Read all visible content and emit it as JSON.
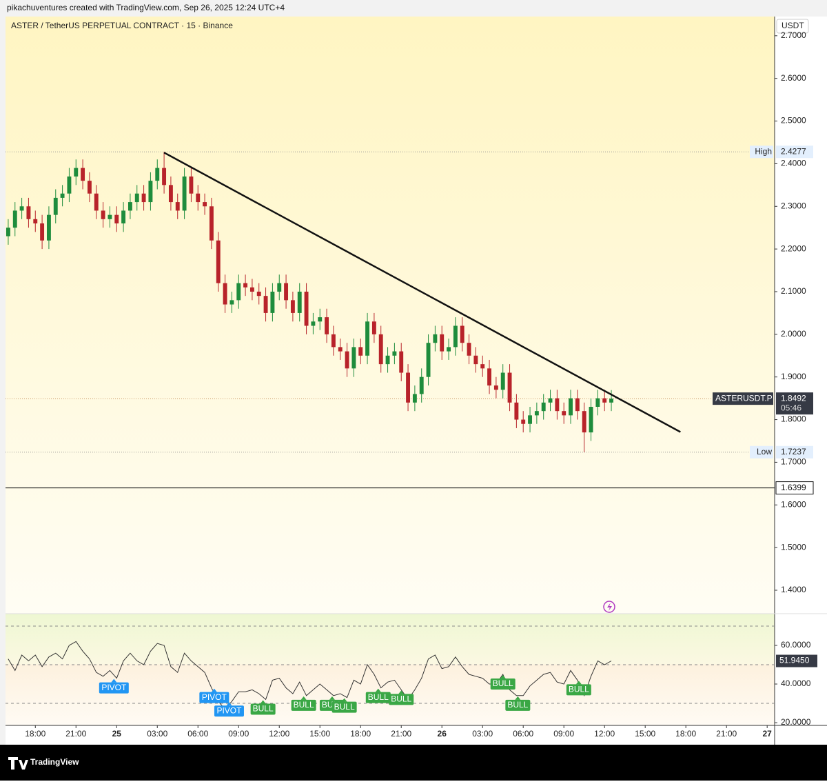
{
  "chart_data": {
    "type": "candlestick",
    "header": "pikachuventures created with TradingView.com, Sep 26, 2025 12:24 UTC+4",
    "title": "ASTER / TetherUS PERPETUAL CONTRACT · 15 · Binance",
    "currency": "USDT",
    "brand": "TradingView",
    "up_color": "#1e8c3c",
    "down_color": "#b8232a",
    "x": [
      16,
      16.5,
      17,
      17.5,
      18,
      18.5,
      19,
      19.5,
      20,
      20.5,
      21,
      21.5,
      22,
      22.5,
      23,
      23.5,
      24,
      24.5,
      25,
      25.5,
      26,
      26.5,
      27,
      27.5,
      28,
      28.5,
      29,
      29.5,
      30,
      30.5,
      31,
      31.5,
      32,
      32.5,
      33,
      33.5,
      34,
      34.5,
      35,
      35.5,
      36,
      36.5,
      37,
      37.5,
      38,
      38.5,
      39,
      39.5,
      40,
      40.5,
      41,
      41.5,
      42,
      42.5,
      43,
      43.5,
      44,
      44.5,
      45,
      45.5,
      46,
      46.5,
      47,
      47.5,
      48,
      48.5,
      49,
      49.5,
      50,
      50.5,
      51,
      51.5,
      52,
      52.5,
      53,
      53.5,
      54,
      54.5,
      55,
      55.5,
      56,
      56.5,
      57,
      57.5,
      58,
      58.5,
      59,
      59.5,
      60,
      60.5
    ],
    "ohlc": {
      "open": [
        2.23,
        2.25,
        2.29,
        2.3,
        2.27,
        2.26,
        2.22,
        2.28,
        2.32,
        2.33,
        2.37,
        2.39,
        2.36,
        2.33,
        2.29,
        2.27,
        2.28,
        2.26,
        2.29,
        2.31,
        2.33,
        2.31,
        2.36,
        2.39,
        2.35,
        2.31,
        2.29,
        2.37,
        2.33,
        2.31,
        2.3,
        2.22,
        2.12,
        2.07,
        2.08,
        2.12,
        2.11,
        2.1,
        2.09,
        2.05,
        2.1,
        2.12,
        2.08,
        2.05,
        2.1,
        2.02,
        2.03,
        2.04,
        2.0,
        1.97,
        1.96,
        1.92,
        1.97,
        1.95,
        2.03,
        2.0,
        1.93,
        1.95,
        1.96,
        1.91,
        1.84,
        1.86,
        1.9,
        1.98,
        2.0,
        1.96,
        1.97,
        2.02,
        1.98,
        1.95,
        1.93,
        1.92,
        1.88,
        1.87,
        1.91,
        1.84,
        1.8,
        1.79,
        1.81,
        1.82,
        1.84,
        1.85,
        1.82,
        1.81,
        1.85,
        1.82,
        1.77,
        1.83,
        1.85,
        1.84
      ],
      "high": [
        2.27,
        2.31,
        2.32,
        2.32,
        2.29,
        2.28,
        2.3,
        2.34,
        2.35,
        2.39,
        2.41,
        2.41,
        2.38,
        2.35,
        2.31,
        2.3,
        2.3,
        2.31,
        2.33,
        2.35,
        2.35,
        2.38,
        2.41,
        2.4277,
        2.37,
        2.33,
        2.39,
        2.39,
        2.35,
        2.33,
        2.32,
        2.24,
        2.14,
        2.1,
        2.14,
        2.14,
        2.13,
        2.12,
        2.11,
        2.12,
        2.14,
        2.14,
        2.1,
        2.12,
        2.12,
        2.05,
        2.06,
        2.06,
        2.02,
        1.99,
        1.98,
        1.99,
        1.99,
        2.05,
        2.05,
        2.02,
        1.97,
        1.98,
        1.98,
        1.93,
        1.88,
        1.92,
        2.0,
        2.02,
        2.02,
        1.99,
        2.04,
        2.04,
        2.0,
        1.97,
        1.95,
        1.94,
        1.9,
        1.93,
        1.93,
        1.86,
        1.82,
        1.83,
        1.84,
        1.86,
        1.87,
        1.87,
        1.84,
        1.87,
        1.87,
        1.84,
        1.85,
        1.87,
        1.87,
        1.8692
      ],
      "low": [
        2.21,
        2.23,
        2.27,
        2.25,
        2.24,
        2.2,
        2.2,
        2.26,
        2.3,
        2.31,
        2.35,
        2.34,
        2.31,
        2.27,
        2.25,
        2.25,
        2.24,
        2.24,
        2.27,
        2.29,
        2.29,
        2.29,
        2.34,
        2.33,
        2.29,
        2.27,
        2.27,
        2.31,
        2.29,
        2.28,
        2.2,
        2.1,
        2.05,
        2.05,
        2.06,
        2.09,
        2.08,
        2.07,
        2.03,
        2.03,
        2.08,
        2.06,
        2.03,
        2.03,
        2.0,
        2.0,
        2.01,
        1.98,
        1.95,
        1.94,
        1.9,
        1.9,
        1.93,
        1.93,
        1.98,
        1.91,
        1.91,
        1.93,
        1.89,
        1.82,
        1.82,
        1.84,
        1.88,
        1.96,
        1.94,
        1.94,
        1.95,
        1.96,
        1.93,
        1.91,
        1.9,
        1.86,
        1.85,
        1.85,
        1.82,
        1.78,
        1.77,
        1.77,
        1.79,
        1.8,
        1.82,
        1.8,
        1.79,
        1.79,
        1.8,
        1.7237,
        1.75,
        1.81,
        1.82,
        1.82
      ],
      "close": [
        2.25,
        2.29,
        2.3,
        2.27,
        2.26,
        2.22,
        2.28,
        2.32,
        2.33,
        2.37,
        2.39,
        2.36,
        2.33,
        2.29,
        2.27,
        2.28,
        2.26,
        2.29,
        2.31,
        2.33,
        2.31,
        2.36,
        2.39,
        2.35,
        2.31,
        2.29,
        2.37,
        2.33,
        2.31,
        2.3,
        2.22,
        2.12,
        2.07,
        2.08,
        2.12,
        2.11,
        2.1,
        2.09,
        2.05,
        2.1,
        2.12,
        2.08,
        2.05,
        2.1,
        2.02,
        2.03,
        2.04,
        2.0,
        1.97,
        1.96,
        1.92,
        1.97,
        1.95,
        2.03,
        2.0,
        1.93,
        1.95,
        1.96,
        1.91,
        1.84,
        1.86,
        1.9,
        1.98,
        2.0,
        1.96,
        1.97,
        2.02,
        1.98,
        1.95,
        1.93,
        1.92,
        1.88,
        1.87,
        1.91,
        1.84,
        1.8,
        1.79,
        1.81,
        1.82,
        1.84,
        1.85,
        1.82,
        1.81,
        1.85,
        1.82,
        1.77,
        1.83,
        1.85,
        1.84,
        1.8492
      ]
    },
    "xlim": [
      15.8,
      72.55
    ],
    "xticks": [
      {
        "value": 18,
        "label": "18:00"
      },
      {
        "value": 21,
        "label": "21:00"
      },
      {
        "value": 24,
        "label": "25"
      },
      {
        "value": 27,
        "label": "03:00"
      },
      {
        "value": 30,
        "label": "06:00"
      },
      {
        "value": 33,
        "label": "09:00"
      },
      {
        "value": 36,
        "label": "12:00"
      },
      {
        "value": 39,
        "label": "15:00"
      },
      {
        "value": 42,
        "label": "18:00"
      },
      {
        "value": 45,
        "label": "21:00"
      },
      {
        "value": 48,
        "label": "26"
      },
      {
        "value": 51,
        "label": "03:00"
      },
      {
        "value": 54,
        "label": "06:00"
      },
      {
        "value": 57,
        "label": "09:00"
      },
      {
        "value": 60,
        "label": "12:00"
      },
      {
        "value": 63,
        "label": "15:00"
      },
      {
        "value": 66,
        "label": "18:00"
      },
      {
        "value": 69,
        "label": "21:00"
      },
      {
        "value": 72,
        "label": "27"
      }
    ],
    "ylim": [
      1.345,
      2.745
    ],
    "yticks": [
      {
        "value": 2.7,
        "label": "2.7000"
      },
      {
        "value": 2.6,
        "label": "2.6000"
      },
      {
        "value": 2.5,
        "label": "2.5000"
      },
      {
        "value": 2.4,
        "label": "2.4000"
      },
      {
        "value": 2.3,
        "label": "2.3000"
      },
      {
        "value": 2.2,
        "label": "2.2000"
      },
      {
        "value": 2.1,
        "label": "2.1000"
      },
      {
        "value": 2.0,
        "label": "2.0000"
      },
      {
        "value": 1.9,
        "label": "1.9000"
      },
      {
        "value": 1.8,
        "label": "1.8000"
      },
      {
        "value": 1.7,
        "label": "1.7000"
      },
      {
        "value": 1.6,
        "label": "1.6000"
      },
      {
        "value": 1.5,
        "label": "1.5000"
      },
      {
        "value": 1.4,
        "label": "1.4000"
      }
    ],
    "high_marker": {
      "label": "High",
      "value": 2.4277
    },
    "low_marker": {
      "label": "Low",
      "value": 1.7237
    },
    "hline": 1.6399,
    "last_price": {
      "symbol": "ASTERUSDT.P",
      "value": 1.8492,
      "countdown": "05:46"
    },
    "trendline": {
      "x": [
        27.5,
        65.6
      ],
      "y": [
        2.426,
        1.771
      ]
    },
    "rsi": {
      "values": [
        53,
        47,
        55,
        52,
        55,
        49,
        54,
        56,
        53,
        60,
        62,
        57,
        53,
        46,
        44,
        47,
        43,
        52,
        56,
        52,
        50,
        57,
        61,
        60,
        49,
        46,
        56,
        52,
        49,
        46,
        38,
        31,
        27,
        31,
        36,
        36,
        37,
        35,
        32,
        42,
        43,
        38,
        35,
        41,
        34,
        37,
        40,
        37,
        34,
        35,
        33,
        42,
        40,
        50,
        45,
        38,
        41,
        42,
        37,
        32,
        37,
        43,
        53,
        55,
        48,
        49,
        54,
        49,
        45,
        44,
        43,
        40,
        40,
        45,
        37,
        34,
        34,
        39,
        42,
        45,
        46,
        41,
        40,
        47,
        42,
        34,
        44,
        52,
        50,
        51.945
      ],
      "ylim": [
        18.6,
        76.4
      ],
      "yticks": [
        {
          "value": 60,
          "label": "60.0000"
        },
        {
          "value": 40,
          "label": "40.0000"
        },
        {
          "value": 20,
          "label": "20.0000"
        }
      ],
      "levels": [
        70,
        50,
        30
      ],
      "last": {
        "value": 51.945,
        "label": "51.9450"
      },
      "signals": [
        {
          "label": "PIVOT",
          "x": 23.8,
          "color": "#2196f3"
        },
        {
          "label": "PIVOT",
          "x": 31.2,
          "color": "#2196f3"
        },
        {
          "label": "PIVOT",
          "x": 32.3,
          "color": "#2196f3"
        },
        {
          "label": "BULL",
          "x": 34.8,
          "color": "#3aa745"
        },
        {
          "label": "BULL",
          "x": 37.8,
          "color": "#3aa745"
        },
        {
          "label": "BULL",
          "x": 39.9,
          "color": "#3aa745"
        },
        {
          "label": "BULL",
          "x": 40.8,
          "color": "#3aa745"
        },
        {
          "label": "BULL",
          "x": 43.3,
          "color": "#3aa745"
        },
        {
          "label": "BULL",
          "x": 45.0,
          "color": "#3aa745"
        },
        {
          "label": "BULL",
          "x": 52.5,
          "color": "#3aa745"
        },
        {
          "label": "BULL",
          "x": 53.6,
          "color": "#3aa745"
        },
        {
          "label": "BULL",
          "x": 58.1,
          "color": "#3aa745"
        }
      ]
    }
  }
}
